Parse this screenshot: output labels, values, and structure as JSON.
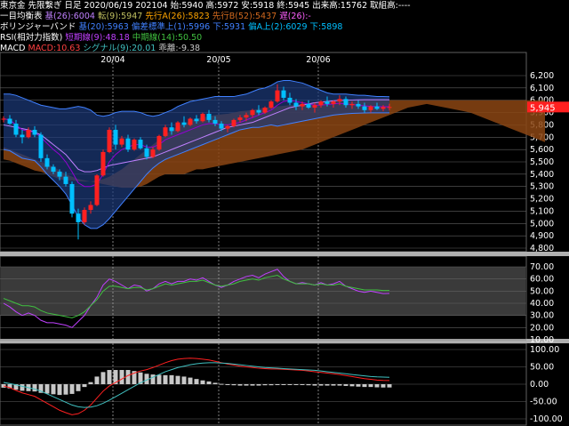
{
  "header": {
    "line1": "東京金 先限繋ぎ 日足 2020/06/19 202104 始:5940 高:5972 安:5918 終:5945 出来高:15762 取組高:----",
    "ichimoku": {
      "label": "一目均衡表",
      "kijun": "基(26):6004",
      "tenkan": "転(9):5947",
      "senkou_a": "先行A(26):5823",
      "senkou_b": "先行B(52):5437",
      "chikou": "遅(26):-"
    },
    "bollinger": {
      "label": "ボリンジャーバンド",
      "mid": "基(20):5963",
      "lower1": "偏差標準上(1):5996",
      "lower_b": "下:5931",
      "upper2": "偏A上(2):6029",
      "lower2": "下:5898"
    },
    "rsi": {
      "label": "RSI(相対力指数)",
      "short": "短期線(9):48.18",
      "mid": "中期線(14):50.50"
    },
    "macd": {
      "label": "MACD",
      "macd": "MACD:10.63",
      "signal": "シグナル(9):20.01",
      "hist": "乖離:-9.38"
    }
  },
  "colors": {
    "background": "#000000",
    "panel_bg": "#000000",
    "band_fill": "#1c3a7a",
    "cloud_fill": "#8b4513",
    "bull_candle": "#ff2020",
    "bear_candle": "#00bfff",
    "tenkan": "#9400d3",
    "kijun": "#c080ff",
    "rsi_short": "#c040ff",
    "rsi_mid": "#40c040",
    "macd_line": "#ff2020",
    "signal_line": "#40c0c0",
    "hist": "#c8c8c8",
    "price_tag_bg": "#ff2020"
  },
  "chart_data": [
    {
      "type": "candlestick",
      "title": "東京金 先限繋ぎ 日足",
      "x_labels": [
        "20/04",
        "20/05",
        "20/06"
      ],
      "ylim": [
        4800,
        6200
      ],
      "y_ticks": [
        4800,
        4900,
        5000,
        5100,
        5200,
        5300,
        5400,
        5500,
        5600,
        5700,
        5800,
        5900,
        6000,
        6100,
        6200
      ],
      "last_price": "5,945",
      "candles": [
        [
          5845,
          5870,
          5820,
          5850
        ],
        [
          5850,
          5880,
          5800,
          5810
        ],
        [
          5810,
          5840,
          5700,
          5720
        ],
        [
          5720,
          5760,
          5650,
          5700
        ],
        [
          5700,
          5780,
          5690,
          5760
        ],
        [
          5760,
          5790,
          5700,
          5720
        ],
        [
          5720,
          5740,
          5500,
          5530
        ],
        [
          5530,
          5560,
          5440,
          5460
        ],
        [
          5460,
          5480,
          5400,
          5420
        ],
        [
          5420,
          5440,
          5350,
          5380
        ],
        [
          5380,
          5420,
          5300,
          5320
        ],
        [
          5320,
          5340,
          5050,
          5080
        ],
        [
          5080,
          5120,
          4870,
          5010
        ],
        [
          5010,
          5130,
          4990,
          5110
        ],
        [
          5110,
          5180,
          5080,
          5150
        ],
        [
          5150,
          5400,
          5140,
          5390
        ],
        [
          5390,
          5600,
          5380,
          5580
        ],
        [
          5580,
          5780,
          5570,
          5760
        ],
        [
          5760,
          5800,
          5600,
          5640
        ],
        [
          5640,
          5710,
          5620,
          5690
        ],
        [
          5690,
          5720,
          5580,
          5600
        ],
        [
          5600,
          5690,
          5590,
          5680
        ],
        [
          5680,
          5700,
          5600,
          5610
        ],
        [
          5610,
          5640,
          5520,
          5540
        ],
        [
          5540,
          5620,
          5530,
          5600
        ],
        [
          5600,
          5720,
          5590,
          5710
        ],
        [
          5710,
          5800,
          5700,
          5780
        ],
        [
          5780,
          5820,
          5720,
          5750
        ],
        [
          5750,
          5830,
          5740,
          5820
        ],
        [
          5820,
          5870,
          5780,
          5800
        ],
        [
          5800,
          5860,
          5790,
          5850
        ],
        [
          5850,
          5880,
          5810,
          5830
        ],
        [
          5830,
          5900,
          5820,
          5890
        ],
        [
          5890,
          5920,
          5820,
          5840
        ],
        [
          5840,
          5870,
          5790,
          5810
        ],
        [
          5810,
          5830,
          5750,
          5770
        ],
        [
          5770,
          5800,
          5740,
          5790
        ],
        [
          5790,
          5850,
          5780,
          5840
        ],
        [
          5840,
          5880,
          5820,
          5860
        ],
        [
          5860,
          5900,
          5830,
          5880
        ],
        [
          5880,
          5930,
          5860,
          5920
        ],
        [
          5920,
          5960,
          5880,
          5900
        ],
        [
          5900,
          5950,
          5890,
          5940
        ],
        [
          5940,
          6000,
          5930,
          5990
        ],
        [
          5990,
          6130,
          5980,
          6080
        ],
        [
          6080,
          6110,
          6000,
          6020
        ],
        [
          6020,
          6060,
          5960,
          5980
        ],
        [
          5980,
          6010,
          5920,
          5950
        ],
        [
          5950,
          5990,
          5920,
          5970
        ],
        [
          5970,
          6000,
          5930,
          5940
        ],
        [
          5940,
          5980,
          5900,
          5960
        ],
        [
          5960,
          6000,
          5940,
          5990
        ],
        [
          5990,
          6030,
          5950,
          5970
        ],
        [
          5970,
          6000,
          5940,
          5990
        ],
        [
          5990,
          6040,
          5960,
          6010
        ],
        [
          6010,
          6030,
          5940,
          5960
        ],
        [
          5960,
          5990,
          5930,
          5970
        ],
        [
          5970,
          6000,
          5930,
          5950
        ],
        [
          5950,
          5980,
          5900,
          5920
        ],
        [
          5920,
          5960,
          5900,
          5950
        ],
        [
          5950,
          5980,
          5920,
          5930
        ],
        [
          5930,
          5960,
          5910,
          5945
        ],
        [
          5940,
          5972,
          5918,
          5945
        ]
      ],
      "bollinger_upper2": [
        6050,
        6050,
        6040,
        6020,
        6000,
        5980,
        5960,
        5950,
        5940,
        5930,
        5930,
        5940,
        5950,
        5940,
        5920,
        5880,
        5870,
        5880,
        5900,
        5910,
        5910,
        5910,
        5900,
        5880,
        5870,
        5880,
        5900,
        5920,
        5950,
        5970,
        5990,
        6000,
        6010,
        6020,
        6030,
        6030,
        6030,
        6030,
        6040,
        6050,
        6070,
        6090,
        6100,
        6120,
        6150,
        6160,
        6160,
        6150,
        6140,
        6120,
        6100,
        6080,
        6060,
        6050,
        6050,
        6050,
        6045,
        6040,
        6040,
        6035,
        6030,
        6030,
        6029
      ],
      "bollinger_lower2": [
        5600,
        5590,
        5560,
        5530,
        5520,
        5510,
        5460,
        5400,
        5350,
        5300,
        5240,
        5150,
        5050,
        4990,
        4960,
        4960,
        4990,
        5040,
        5100,
        5160,
        5220,
        5280,
        5340,
        5400,
        5450,
        5490,
        5520,
        5540,
        5560,
        5580,
        5600,
        5620,
        5640,
        5660,
        5680,
        5700,
        5720,
        5740,
        5760,
        5770,
        5780,
        5780,
        5790,
        5800,
        5790,
        5800,
        5810,
        5820,
        5830,
        5840,
        5850,
        5860,
        5870,
        5880,
        5885,
        5890,
        5893,
        5895,
        5897,
        5898,
        5898,
        5898,
        5898
      ],
      "tenkan_line": [
        5850,
        5840,
        5800,
        5760,
        5750,
        5740,
        5700,
        5650,
        5600,
        5560,
        5500,
        5420,
        5330,
        5300,
        5300,
        5320,
        5400,
        5500,
        5560,
        5600,
        5620,
        5640,
        5640,
        5620,
        5620,
        5640,
        5680,
        5700,
        5720,
        5740,
        5760,
        5780,
        5800,
        5810,
        5810,
        5800,
        5800,
        5810,
        5820,
        5840,
        5860,
        5880,
        5900,
        5920,
        5960,
        5990,
        6000,
        5990,
        5980,
        5970,
        5960,
        5960,
        5965,
        5970,
        5975,
        5970,
        5965,
        5960,
        5955,
        5950,
        5948,
        5947,
        5947
      ],
      "kijun_line": [
        5800,
        5790,
        5780,
        5770,
        5760,
        5740,
        5720,
        5680,
        5640,
        5600,
        5560,
        5500,
        5440,
        5420,
        5420,
        5430,
        5450,
        5470,
        5480,
        5490,
        5500,
        5510,
        5520,
        5530,
        5540,
        5560,
        5580,
        5600,
        5620,
        5640,
        5660,
        5680,
        5700,
        5720,
        5740,
        5760,
        5780,
        5790,
        5800,
        5810,
        5820,
        5840,
        5860,
        5880,
        5900,
        5920,
        5940,
        5950,
        5960,
        5970,
        5980,
        5985,
        5990,
        5995,
        6000,
        6000,
        6002,
        6003,
        6004,
        6004,
        6004,
        6004,
        6004
      ],
      "cloud_top": [
        5520,
        5510,
        5490,
        5470,
        5450,
        5430,
        5420,
        5400,
        5380,
        5360,
        5350,
        5350,
        5345,
        5340,
        5340,
        5350,
        5360,
        5380,
        5410,
        5440,
        5480,
        5520,
        5560,
        5600,
        5640,
        5680,
        5720,
        5760,
        5790,
        5810,
        5830,
        5850,
        5860,
        5870,
        5880,
        5885,
        5890,
        5900,
        5910,
        5915,
        5920,
        5930,
        5940,
        5945,
        5950,
        5955,
        5960,
        5965,
        5970,
        5975,
        5980,
        5983,
        5986,
        5990,
        5992,
        5994,
        5996,
        5998,
        6000,
        6000,
        6000,
        6000,
        6000,
        6000,
        6000,
        6000,
        6000,
        6000,
        6000,
        6000,
        6000,
        6000,
        6000,
        6000,
        6000,
        6000,
        6000,
        6000,
        6000,
        6000,
        6000,
        6000,
        6000,
        6000,
        6000,
        6000,
        6000,
        6000
      ],
      "cloud_bottom": [
        5620,
        5600,
        5580,
        5560,
        5540,
        5520,
        5500,
        5480,
        5460,
        5430,
        5400,
        5380,
        5360,
        5350,
        5340,
        5330,
        5320,
        5310,
        5300,
        5290,
        5290,
        5290,
        5300,
        5320,
        5350,
        5380,
        5400,
        5400,
        5400,
        5400,
        5420,
        5440,
        5440,
        5450,
        5460,
        5470,
        5480,
        5490,
        5500,
        5510,
        5520,
        5530,
        5540,
        5550,
        5560,
        5570,
        5580,
        5590,
        5600,
        5620,
        5640,
        5660,
        5680,
        5700,
        5720,
        5740,
        5760,
        5780,
        5800,
        5820,
        5840,
        5860,
        5880,
        5900,
        5920,
        5940,
        5950,
        5960,
        5970,
        5960,
        5950,
        5940,
        5930,
        5920,
        5910,
        5900,
        5880,
        5860,
        5840,
        5820,
        5800,
        5780,
        5760,
        5740,
        5720,
        5700,
        5680,
        5660
      ]
    },
    {
      "type": "line",
      "title": "RSI(相対力指数)",
      "ylim": [
        10,
        70
      ],
      "y_ticks": [
        10,
        20,
        30,
        40,
        50,
        60,
        70
      ],
      "series": [
        {
          "name": "短期線(9)",
          "values": [
            40,
            37,
            33,
            30,
            32,
            30,
            26,
            24,
            24,
            23,
            22,
            20,
            25,
            30,
            38,
            45,
            55,
            60,
            58,
            55,
            52,
            55,
            54,
            50,
            52,
            56,
            58,
            56,
            58,
            58,
            60,
            59,
            61,
            58,
            55,
            53,
            55,
            58,
            60,
            62,
            63,
            61,
            64,
            66,
            68,
            62,
            58,
            56,
            57,
            56,
            55,
            57,
            55,
            56,
            58,
            54,
            52,
            50,
            49,
            50,
            49,
            48,
            48.18
          ]
        },
        {
          "name": "中期線(14)",
          "values": [
            44,
            42,
            40,
            38,
            38,
            37,
            34,
            32,
            31,
            30,
            29,
            28,
            30,
            33,
            38,
            43,
            50,
            54,
            54,
            53,
            52,
            53,
            53,
            51,
            52,
            54,
            56,
            55,
            56,
            57,
            58,
            58,
            59,
            57,
            55,
            54,
            55,
            56,
            58,
            59,
            60,
            59,
            61,
            62,
            63,
            60,
            58,
            56,
            56,
            56,
            55,
            56,
            55,
            55,
            56,
            54,
            53,
            52,
            51,
            51,
            51,
            50.5,
            50.5
          ]
        }
      ]
    },
    {
      "type": "bar",
      "title": "MACD",
      "ylim": [
        -100,
        100
      ],
      "y_ticks": [
        -100,
        -50,
        0,
        50,
        100
      ],
      "series": [
        {
          "name": "MACD",
          "values": [
            -5,
            -10,
            -18,
            -25,
            -30,
            -35,
            -45,
            -55,
            -65,
            -75,
            -82,
            -88,
            -85,
            -75,
            -60,
            -40,
            -20,
            -5,
            5,
            15,
            25,
            32,
            38,
            42,
            48,
            55,
            62,
            68,
            72,
            74,
            75,
            74,
            72,
            70,
            66,
            62,
            58,
            55,
            52,
            50,
            48,
            46,
            45,
            44,
            44,
            43,
            42,
            41,
            40,
            38,
            36,
            34,
            32,
            30,
            28,
            25,
            22,
            19,
            16,
            14,
            12,
            11,
            10.63
          ]
        },
        {
          "name": "シグナル(9)",
          "values": [
            5,
            2,
            -2,
            -6,
            -10,
            -14,
            -20,
            -28,
            -36,
            -44,
            -52,
            -60,
            -65,
            -67,
            -66,
            -62,
            -55,
            -46,
            -36,
            -26,
            -16,
            -6,
            4,
            12,
            20,
            28,
            36,
            42,
            48,
            52,
            56,
            59,
            61,
            62,
            62,
            61,
            60,
            58,
            56,
            54,
            52,
            50,
            48,
            47,
            46,
            45,
            44,
            43,
            42,
            41,
            40,
            38,
            36,
            34,
            32,
            30,
            28,
            26,
            24,
            22,
            21,
            20.5,
            20.01
          ]
        },
        {
          "name": "乖離",
          "values": [
            -10,
            -12,
            -16,
            -19,
            -20,
            -21,
            -25,
            -27,
            -29,
            -31,
            -30,
            -28,
            -20,
            -8,
            6,
            22,
            35,
            41,
            41,
            41,
            41,
            38,
            34,
            30,
            28,
            27,
            26,
            26,
            24,
            22,
            19,
            15,
            11,
            8,
            4,
            1,
            -2,
            -3,
            -4,
            -4,
            -4,
            -4,
            -3,
            -3,
            -2,
            -2,
            -2,
            -2,
            -2,
            -3,
            -4,
            -4,
            -4,
            -4,
            -4,
            -5,
            -6,
            -7,
            -8,
            -8,
            -9,
            -9.5,
            -9.38
          ]
        }
      ]
    }
  ]
}
